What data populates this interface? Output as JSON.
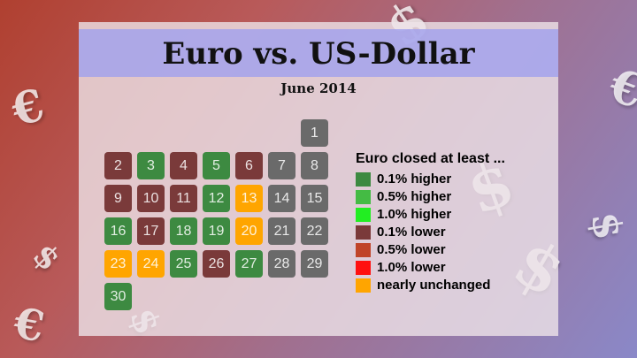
{
  "chart_data": {
    "type": "table",
    "title": "Euro vs. US-Dollar",
    "subtitle": "June 2014",
    "legend_title": "Euro closed at least ...",
    "categories": [
      {
        "key": "h01",
        "label": "0.1% higher",
        "color": "#3d8a41"
      },
      {
        "key": "h05",
        "label": "0.5% higher",
        "color": "#44bb44"
      },
      {
        "key": "h10",
        "label": "1.0% higher",
        "color": "#22ee22"
      },
      {
        "key": "l01",
        "label": "0.1% lower",
        "color": "#7a3a3a"
      },
      {
        "key": "l05",
        "label": "0.5% lower",
        "color": "#c04428"
      },
      {
        "key": "l10",
        "label": "1.0% lower",
        "color": "#ff1010"
      },
      {
        "key": "unch",
        "label": "nearly unchanged",
        "color": "#ffa500"
      },
      {
        "key": "closed",
        "label": "",
        "color": "#6a6a6a"
      }
    ],
    "days": [
      {
        "day": "1",
        "cat": "closed"
      },
      {
        "day": "2",
        "cat": "l01"
      },
      {
        "day": "3",
        "cat": "h01"
      },
      {
        "day": "4",
        "cat": "l01"
      },
      {
        "day": "5",
        "cat": "h01"
      },
      {
        "day": "6",
        "cat": "l01"
      },
      {
        "day": "7",
        "cat": "closed"
      },
      {
        "day": "8",
        "cat": "closed"
      },
      {
        "day": "9",
        "cat": "l01"
      },
      {
        "day": "10",
        "cat": "l01"
      },
      {
        "day": "11",
        "cat": "l01"
      },
      {
        "day": "12",
        "cat": "h01"
      },
      {
        "day": "13",
        "cat": "unch"
      },
      {
        "day": "14",
        "cat": "closed"
      },
      {
        "day": "15",
        "cat": "closed"
      },
      {
        "day": "16",
        "cat": "h01"
      },
      {
        "day": "17",
        "cat": "l01"
      },
      {
        "day": "18",
        "cat": "h01"
      },
      {
        "day": "19",
        "cat": "h01"
      },
      {
        "day": "20",
        "cat": "unch"
      },
      {
        "day": "21",
        "cat": "closed"
      },
      {
        "day": "22",
        "cat": "closed"
      },
      {
        "day": "23",
        "cat": "unch"
      },
      {
        "day": "24",
        "cat": "unch"
      },
      {
        "day": "25",
        "cat": "h01"
      },
      {
        "day": "26",
        "cat": "l01"
      },
      {
        "day": "27",
        "cat": "h01"
      },
      {
        "day": "28",
        "cat": "closed"
      },
      {
        "day": "29",
        "cat": "closed"
      },
      {
        "day": "30",
        "cat": "h01"
      }
    ]
  },
  "background": {
    "euro_symbol": "€",
    "dollar_symbol": "$"
  }
}
